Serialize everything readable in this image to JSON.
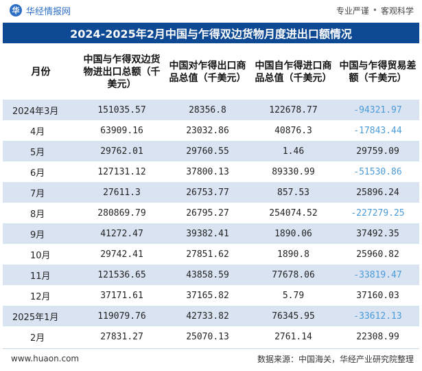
{
  "brand": {
    "logo_char": "华",
    "name": "华经情报网"
  },
  "tagline": {
    "left": "专业严谨",
    "right": "客观科学"
  },
  "title": "2024-2025年2月中国与乍得双边货物月度进出口额情况",
  "columns": [
    "月份",
    "中国与乍得双边货物进出口总额（千美元）",
    "中国对乍得出口商品总值（千美元）",
    "中国自乍得进口商品总值（千美元）",
    "中国与乍得贸易差额（千美元）"
  ],
  "rows": [
    {
      "month": "2024年3月",
      "total": "151035.57",
      "export": "28356.8",
      "import": "122678.77",
      "balance": "-94321.97"
    },
    {
      "month": "4月",
      "total": "63909.16",
      "export": "23032.86",
      "import": "40876.3",
      "balance": "-17843.44"
    },
    {
      "month": "5月",
      "total": "29762.01",
      "export": "29760.55",
      "import": "1.46",
      "balance": "29759.09"
    },
    {
      "month": "6月",
      "total": "127131.12",
      "export": "37800.13",
      "import": "89330.99",
      "balance": "-51530.86"
    },
    {
      "month": "7月",
      "total": "27611.3",
      "export": "26753.77",
      "import": "857.53",
      "balance": "25896.24"
    },
    {
      "month": "8月",
      "total": "280869.79",
      "export": "26795.27",
      "import": "254074.52",
      "balance": "-227279.25"
    },
    {
      "month": "9月",
      "total": "41272.47",
      "export": "39382.41",
      "import": "1890.06",
      "balance": "37492.35"
    },
    {
      "month": "10月",
      "total": "29742.41",
      "export": "27851.62",
      "import": "1890.8",
      "balance": "25960.82"
    },
    {
      "month": "11月",
      "total": "121536.65",
      "export": "43858.59",
      "import": "77678.06",
      "balance": "-33819.47"
    },
    {
      "month": "12月",
      "total": "37171.61",
      "export": "37165.82",
      "import": "5.79",
      "balance": "37160.03"
    },
    {
      "month": "2025年1月",
      "total": "119079.76",
      "export": "42733.82",
      "import": "76345.95",
      "balance": "-33612.13"
    },
    {
      "month": "2月",
      "total": "27831.27",
      "export": "25070.13",
      "import": "2761.14",
      "balance": "22308.99"
    }
  ],
  "footer": {
    "url": "www.huaon.com",
    "source": "数据来源：中国海关，华经产业研究院整理"
  },
  "colors": {
    "title_bg": "#0e4a94",
    "row_alt": "#d9e3f2",
    "negative": "#4a9bd8",
    "brand": "#2e6fc6"
  }
}
